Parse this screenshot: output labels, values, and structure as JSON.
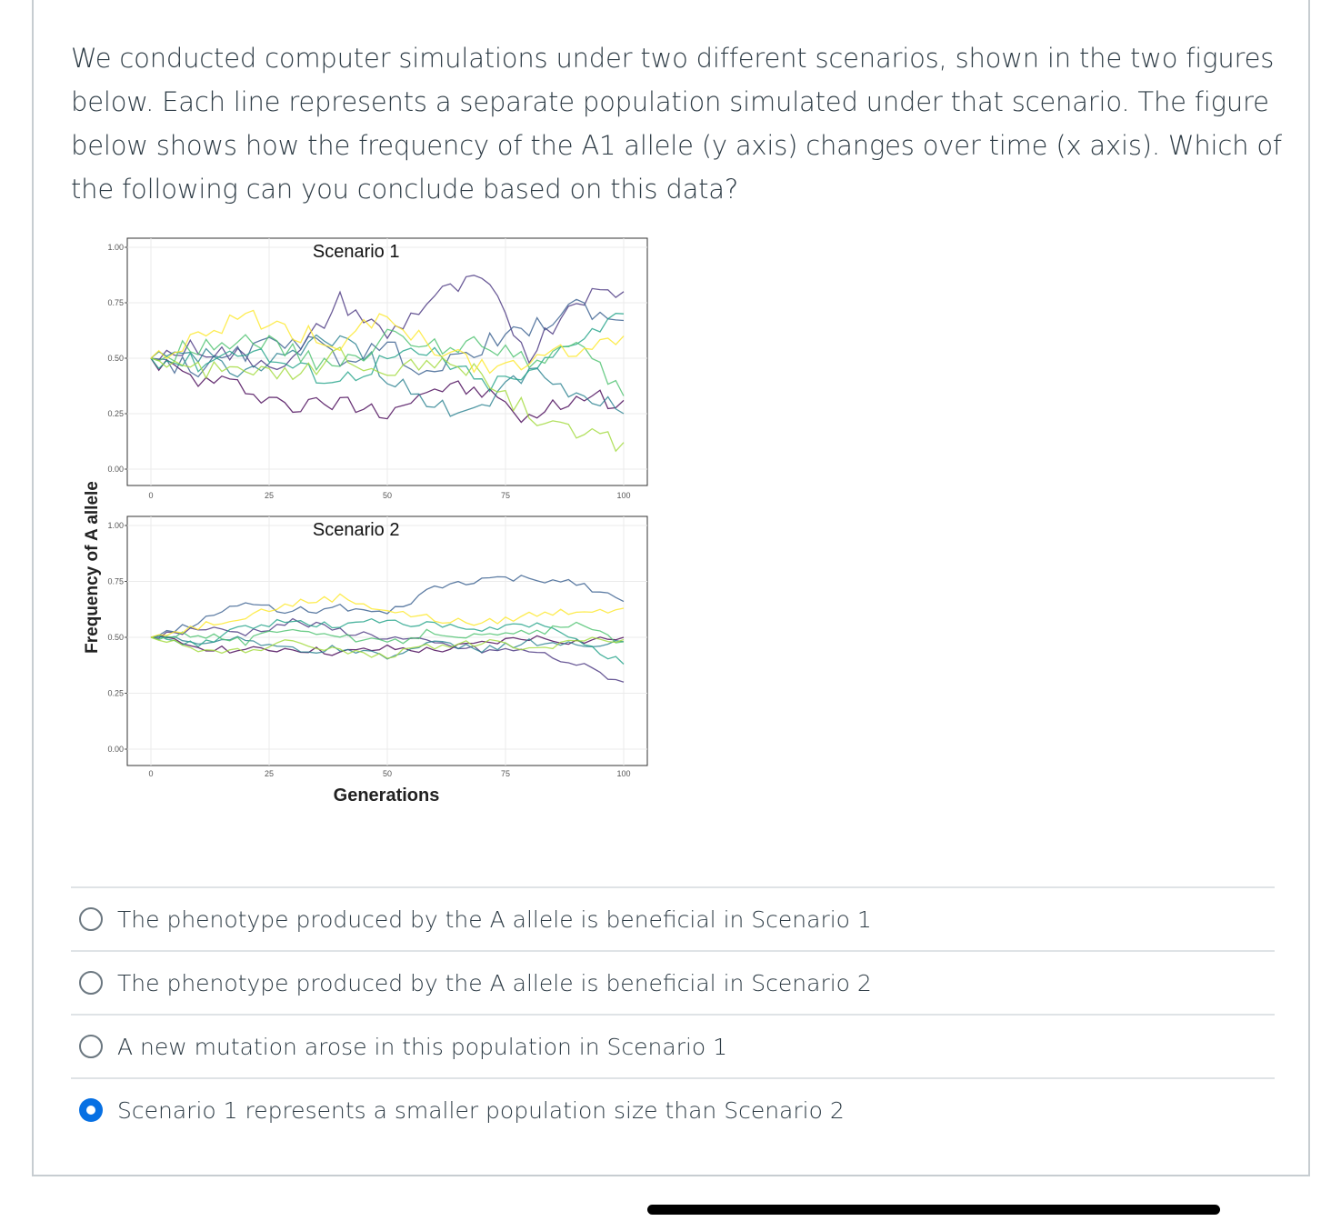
{
  "question": {
    "text": "We conducted computer simulations under two different scenarios, shown in the two figures below. Each line represents a separate population simulated under that scenario. The figure below shows how the frequency of the A1 allele (y axis) changes over time (x axis). Which of the following can you conclude based on this data?"
  },
  "answers": [
    {
      "label": "The phenotype produced by the A allele is beneficial in Scenario 1",
      "selected": false
    },
    {
      "label": "The phenotype produced by the A allele is beneficial in Scenario 2",
      "selected": false
    },
    {
      "label": "A new mutation arose in this population in Scenario 1",
      "selected": false
    },
    {
      "label": "Scenario 1 represents a smaller population size than Scenario 2",
      "selected": true
    }
  ],
  "chart_data": [
    {
      "type": "line",
      "title": "Scenario 1",
      "ylabel": "Frequency of A allele",
      "xlabel": "",
      "xlim": [
        0,
        100
      ],
      "ylim": [
        0,
        1
      ],
      "xticks": [
        "0",
        "25",
        "50",
        "75",
        "100"
      ],
      "yticks": [
        "0.00",
        "0.25",
        "0.50",
        "0.75",
        "1.00"
      ],
      "grid": true,
      "x": [
        0,
        10,
        20,
        30,
        40,
        50,
        60,
        70,
        80,
        90,
        100
      ],
      "series": [
        {
          "color": "#440154",
          "values": [
            0.5,
            0.4,
            0.37,
            0.28,
            0.3,
            0.27,
            0.37,
            0.35,
            0.22,
            0.33,
            0.31
          ]
        },
        {
          "color": "#46327e",
          "values": [
            0.5,
            0.55,
            0.5,
            0.48,
            0.76,
            0.6,
            0.78,
            0.85,
            0.52,
            0.78,
            0.8
          ]
        },
        {
          "color": "#365c8d",
          "values": [
            0.5,
            0.45,
            0.52,
            0.6,
            0.5,
            0.55,
            0.43,
            0.56,
            0.62,
            0.74,
            0.67
          ]
        },
        {
          "color": "#277f8e",
          "values": [
            0.5,
            0.52,
            0.44,
            0.5,
            0.62,
            0.42,
            0.26,
            0.3,
            0.45,
            0.35,
            0.25
          ]
        },
        {
          "color": "#1fa187",
          "values": [
            0.5,
            0.48,
            0.55,
            0.46,
            0.4,
            0.5,
            0.52,
            0.38,
            0.42,
            0.6,
            0.7
          ]
        },
        {
          "color": "#4ac16d",
          "values": [
            0.5,
            0.56,
            0.6,
            0.52,
            0.45,
            0.6,
            0.55,
            0.58,
            0.5,
            0.55,
            0.33
          ]
        },
        {
          "color": "#a0da39",
          "values": [
            0.5,
            0.44,
            0.48,
            0.4,
            0.52,
            0.45,
            0.5,
            0.42,
            0.25,
            0.15,
            0.12
          ]
        },
        {
          "color": "#fde725",
          "values": [
            0.5,
            0.58,
            0.7,
            0.62,
            0.58,
            0.68,
            0.55,
            0.45,
            0.47,
            0.55,
            0.6
          ]
        }
      ]
    },
    {
      "type": "line",
      "title": "Scenario 2",
      "ylabel": "Frequency of A allele",
      "xlabel": "Generations",
      "xlim": [
        0,
        100
      ],
      "ylim": [
        0,
        1
      ],
      "xticks": [
        "0",
        "25",
        "50",
        "75",
        "100"
      ],
      "yticks": [
        "0.00",
        "0.25",
        "0.50",
        "0.75",
        "1.00"
      ],
      "grid": true,
      "x": [
        0,
        10,
        20,
        30,
        40,
        50,
        60,
        70,
        80,
        90,
        100
      ],
      "series": [
        {
          "color": "#440154",
          "values": [
            0.5,
            0.46,
            0.44,
            0.45,
            0.43,
            0.45,
            0.44,
            0.47,
            0.5,
            0.48,
            0.5
          ]
        },
        {
          "color": "#46327e",
          "values": [
            0.5,
            0.54,
            0.52,
            0.57,
            0.53,
            0.5,
            0.47,
            0.44,
            0.44,
            0.38,
            0.3
          ]
        },
        {
          "color": "#365c8d",
          "values": [
            0.5,
            0.57,
            0.65,
            0.62,
            0.63,
            0.6,
            0.72,
            0.76,
            0.76,
            0.75,
            0.66
          ]
        },
        {
          "color": "#277f8e",
          "values": [
            0.5,
            0.48,
            0.5,
            0.44,
            0.45,
            0.42,
            0.47,
            0.45,
            0.48,
            0.46,
            0.48
          ]
        },
        {
          "color": "#1fa187",
          "values": [
            0.5,
            0.47,
            0.55,
            0.57,
            0.55,
            0.58,
            0.55,
            0.53,
            0.56,
            0.5,
            0.38
          ]
        },
        {
          "color": "#4ac16d",
          "values": [
            0.5,
            0.52,
            0.48,
            0.55,
            0.5,
            0.47,
            0.53,
            0.5,
            0.52,
            0.55,
            0.48
          ]
        },
        {
          "color": "#a0da39",
          "values": [
            0.5,
            0.45,
            0.43,
            0.48,
            0.44,
            0.42,
            0.46,
            0.48,
            0.45,
            0.48,
            0.49
          ]
        },
        {
          "color": "#fde725",
          "values": [
            0.5,
            0.55,
            0.6,
            0.65,
            0.68,
            0.62,
            0.58,
            0.56,
            0.6,
            0.62,
            0.63
          ]
        }
      ]
    }
  ],
  "figure": {
    "ylabel": "Frequency of A allele",
    "xlabel": "Generations"
  }
}
